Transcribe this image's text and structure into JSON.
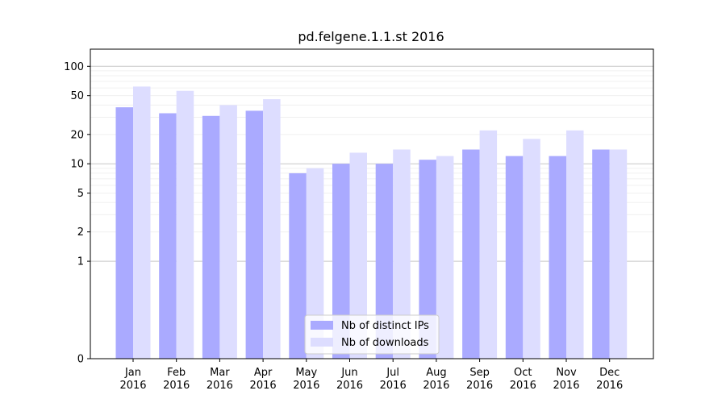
{
  "chart_data": {
    "type": "bar",
    "title": "pd.felgene.1.1.st 2016",
    "xlabel": "",
    "ylabel": "",
    "y_scale": "symlog",
    "y_ticks": [
      0,
      1,
      2,
      5,
      10,
      20,
      50,
      100
    ],
    "y_tick_labels": [
      "0",
      "1",
      "2",
      "5",
      "10",
      "20",
      "50",
      "100"
    ],
    "ylim": [
      0,
      150
    ],
    "categories": [
      {
        "month": "Jan",
        "year": "2016"
      },
      {
        "month": "Feb",
        "year": "2016"
      },
      {
        "month": "Mar",
        "year": "2016"
      },
      {
        "month": "Apr",
        "year": "2016"
      },
      {
        "month": "May",
        "year": "2016"
      },
      {
        "month": "Jun",
        "year": "2016"
      },
      {
        "month": "Jul",
        "year": "2016"
      },
      {
        "month": "Aug",
        "year": "2016"
      },
      {
        "month": "Sep",
        "year": "2016"
      },
      {
        "month": "Oct",
        "year": "2016"
      },
      {
        "month": "Nov",
        "year": "2016"
      },
      {
        "month": "Dec",
        "year": "2016"
      }
    ],
    "series": [
      {
        "name": "Nb of distinct IPs",
        "color": "#aaaaff",
        "values": [
          38,
          33,
          31,
          35,
          8,
          10,
          10,
          11,
          14,
          12,
          12,
          14
        ]
      },
      {
        "name": "Nb of downloads",
        "color": "#ddddff",
        "values": [
          62,
          56,
          40,
          46,
          9,
          13,
          14,
          12,
          22,
          18,
          22,
          14
        ]
      }
    ],
    "grid": true,
    "legend_position": "bottom-center"
  }
}
